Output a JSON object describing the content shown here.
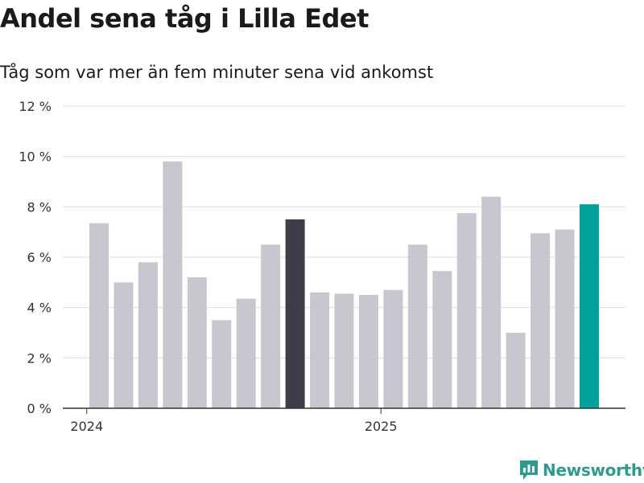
{
  "title": "Andel sena tåg i Lilla Edet",
  "subtitle": "Tåg som var mer än fem minuter sena vid ankomst",
  "brand": "Newsworthy",
  "colors": {
    "bar": "#c8c7d0",
    "highlight_dark": "#3e3d4a",
    "highlight_current": "#00a399",
    "gridline": "#dddddd",
    "axis": "#333333",
    "brand": "#2a9d8f"
  },
  "chart_data": {
    "type": "bar",
    "title": "Andel sena tåg i Lilla Edet",
    "subtitle": "Tåg som var mer än fem minuter sena vid ankomst",
    "xlabel": "",
    "ylabel": "",
    "ylim": [
      0,
      12
    ],
    "yticks": [
      0,
      2,
      4,
      6,
      8,
      10,
      12
    ],
    "ytick_labels": [
      "0 %",
      "2 %",
      "4 %",
      "6 %",
      "8 %",
      "10 %",
      "12 %"
    ],
    "xtick_labels": [
      {
        "label": "2024",
        "at_index": -0.5
      },
      {
        "label": "2025",
        "at_index": 11.5
      }
    ],
    "grid": true,
    "categories": [
      "2024-01",
      "2024-02",
      "2024-03",
      "2024-04",
      "2024-05",
      "2024-06",
      "2024-07",
      "2024-08",
      "2024-09",
      "2024-10",
      "2024-11",
      "2024-12",
      "2025-01",
      "2025-02",
      "2025-03",
      "2025-04",
      "2025-05",
      "2025-06",
      "2025-07",
      "2025-08",
      "2025-09",
      "2025-10"
    ],
    "values": [
      7.35,
      5.0,
      5.8,
      9.8,
      5.2,
      3.5,
      4.35,
      6.5,
      7.5,
      4.6,
      4.55,
      4.5,
      4.7,
      6.5,
      5.45,
      7.75,
      8.4,
      3.0,
      6.95,
      7.1,
      8.1,
      0
    ],
    "highlight": {
      "8": "dark",
      "20": "current"
    }
  }
}
